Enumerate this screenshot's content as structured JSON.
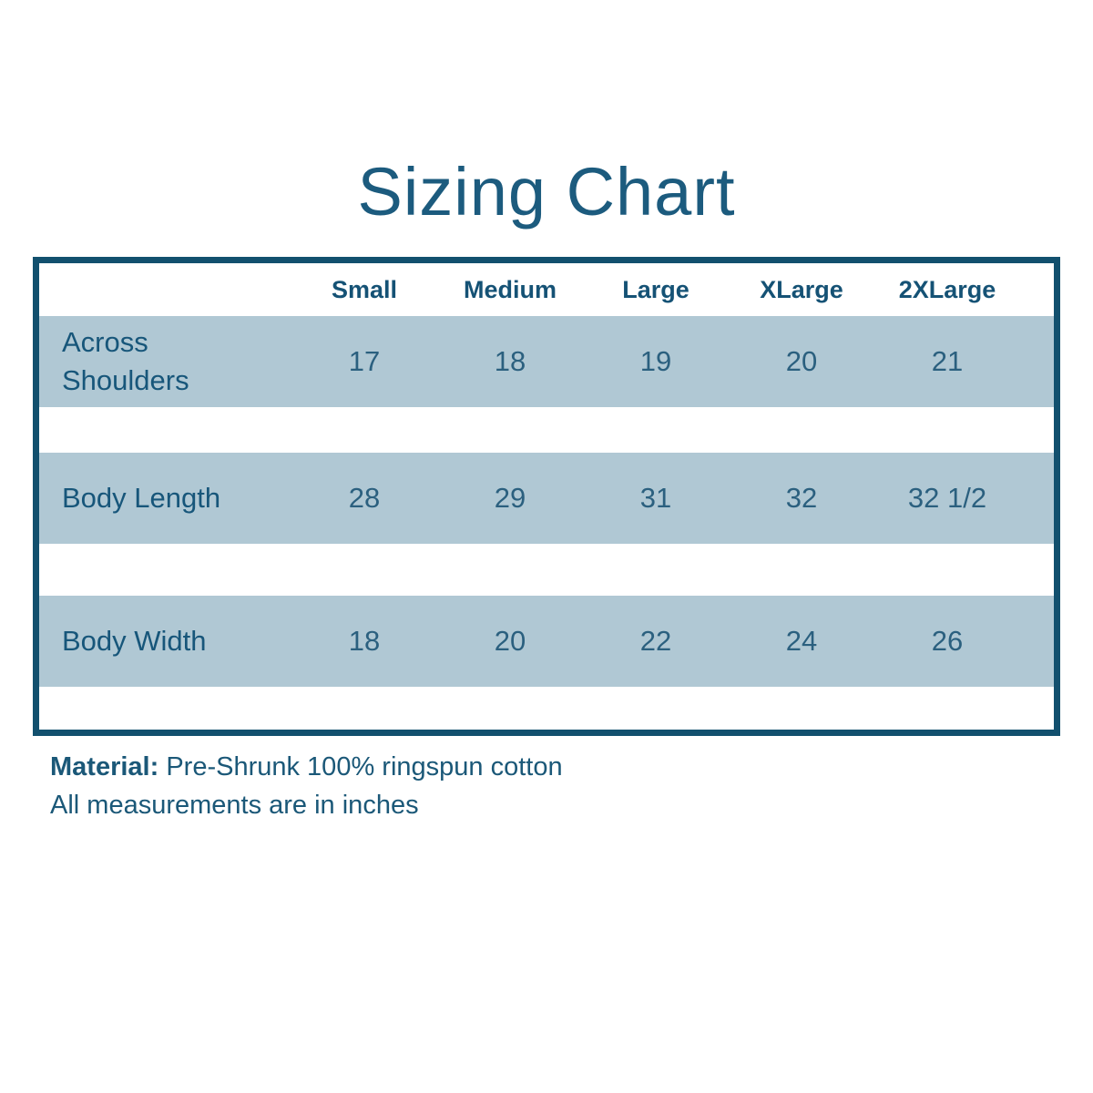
{
  "title": "Sizing Chart",
  "chart_data": {
    "type": "table",
    "title": "Sizing Chart",
    "columns": [
      "Small",
      "Medium",
      "Large",
      "XLarge",
      "2XLarge"
    ],
    "rows": [
      {
        "label": "Across Shoulders",
        "values": [
          "17",
          "18",
          "19",
          "20",
          "21"
        ]
      },
      {
        "label": "Body Length",
        "values": [
          "28",
          "29",
          "31",
          "32",
          "32 1/2"
        ]
      },
      {
        "label": "Body Width",
        "values": [
          "18",
          "20",
          "22",
          "24",
          "26"
        ]
      }
    ],
    "units": "inches"
  },
  "footer": {
    "material_label": "Material:",
    "material_value": "Pre-Shrunk 100% ringspun cotton",
    "note": "All measurements are in inches"
  },
  "colors": {
    "title_text": "#1c5b7e",
    "table_border": "#12506e",
    "band_background": "#b0c8d4",
    "header_text": "#155275",
    "label_text": "#17567a",
    "value_text": "#2b607f",
    "footer_text": "#1b5878",
    "page_background": "#ffffff"
  }
}
